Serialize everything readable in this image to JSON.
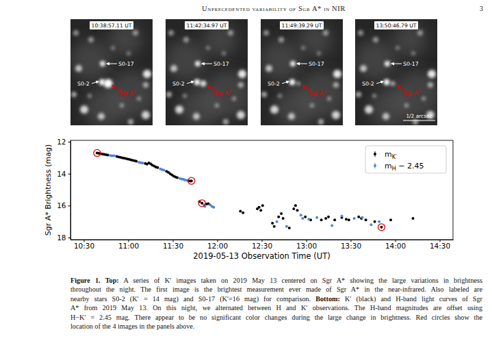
{
  "header": {
    "title": "Unprecedented variability of Sgr A* in NIR",
    "page": "3"
  },
  "panels": {
    "times": [
      "10:38:57.11 UT",
      "11:42:34.97 UT",
      "11:49:39.29 UT",
      "13:50:46.79 UT"
    ],
    "star_labels": [
      "S0-17",
      "S0-2"
    ],
    "target_label": "Sgr A*",
    "scale_label": "1/2 arcsec"
  },
  "chart_data": {
    "type": "scatter",
    "xlabel": "2019-05-13 Observation Time (UT)",
    "ylabel": "Sgr A* Brightness (mag)",
    "xlim": [
      10.35,
      14.65
    ],
    "xticks": [
      {
        "value": 10.5,
        "label": "10:30"
      },
      {
        "value": 11.0,
        "label": "11:00"
      },
      {
        "value": 11.5,
        "label": "11:30"
      },
      {
        "value": 12.0,
        "label": "12:00"
      },
      {
        "value": 12.5,
        "label": "12:30"
      },
      {
        "value": 13.0,
        "label": "13:00"
      },
      {
        "value": 13.5,
        "label": "13:30"
      },
      {
        "value": 14.0,
        "label": "14:00"
      },
      {
        "value": 14.5,
        "label": "14:30"
      }
    ],
    "ylim": [
      18.13,
      11.91
    ],
    "yticks": [
      12,
      14,
      16,
      18
    ],
    "legend": "upper right",
    "marker": "circle",
    "series": [
      {
        "name": "mK′",
        "color": "#000000",
        "x": [
          10.649,
          10.67,
          10.69,
          10.71,
          10.73,
          10.75,
          10.77,
          10.87,
          10.89,
          10.91,
          10.93,
          10.95,
          10.97,
          10.99,
          11.01,
          11.03,
          11.05,
          11.07,
          11.09,
          11.19,
          11.21,
          11.23,
          11.25,
          11.27,
          11.29,
          11.31,
          11.33,
          11.43,
          11.45,
          11.47,
          11.49,
          11.51,
          11.53,
          11.55,
          11.68,
          11.7,
          11.71,
          11.8,
          11.828,
          11.88,
          11.9,
          12.26,
          12.29,
          12.45,
          12.47,
          12.49,
          12.51,
          12.62,
          12.64,
          12.69,
          12.72,
          12.74,
          12.81,
          12.86,
          12.88,
          12.9,
          12.99,
          13.05,
          13.17,
          13.22,
          13.25,
          13.32,
          13.4,
          13.45,
          13.48,
          13.59,
          13.62,
          13.67,
          13.77,
          13.846,
          13.95,
          14.2
        ],
        "values": [
          12.7,
          12.73,
          12.75,
          12.77,
          12.79,
          12.81,
          12.83,
          12.92,
          12.95,
          12.97,
          13.0,
          13.02,
          13.05,
          13.08,
          13.1,
          13.13,
          13.16,
          13.19,
          13.22,
          13.36,
          13.4,
          13.33,
          13.38,
          13.47,
          13.52,
          13.58,
          13.62,
          13.85,
          13.92,
          14.0,
          14.08,
          14.15,
          14.2,
          14.25,
          14.45,
          14.46,
          14.45,
          15.75,
          15.85,
          15.9,
          15.88,
          16.35,
          16.45,
          16.2,
          16.1,
          16.3,
          16.0,
          17.1,
          17.3,
          16.7,
          16.5,
          16.8,
          17.4,
          16.2,
          16.0,
          16.3,
          16.7,
          16.9,
          16.9,
          16.8,
          16.7,
          16.9,
          16.75,
          16.85,
          16.9,
          16.7,
          16.8,
          16.9,
          17.0,
          17.35,
          16.9,
          16.8
        ]
      },
      {
        "name": "mH − 2.45",
        "color": "#5082dc",
        "x": [
          10.8,
          10.82,
          10.84,
          11.12,
          11.14,
          11.16,
          11.36,
          11.38,
          11.4,
          11.58,
          11.6,
          11.62,
          11.64,
          11.66,
          11.85,
          11.86,
          11.92,
          11.94,
          11.96,
          12.67,
          12.78,
          12.94,
          12.96,
          13.03,
          13.12,
          13.29,
          13.4,
          13.54,
          13.63,
          13.73,
          13.82
        ],
        "values": [
          12.86,
          12.88,
          12.87,
          13.28,
          13.31,
          13.33,
          13.7,
          13.74,
          13.78,
          14.3,
          14.33,
          14.36,
          14.4,
          14.42,
          15.95,
          16.05,
          15.95,
          16.05,
          16.1,
          17.0,
          17.3,
          16.6,
          16.8,
          16.85,
          16.75,
          17.25,
          16.65,
          16.8,
          16.75,
          17.2,
          17.0
        ]
      }
    ],
    "highlights": {
      "color": "#e00000",
      "x": [
        10.649,
        11.71,
        11.828,
        13.846
      ],
      "values": [
        12.7,
        14.45,
        15.85,
        17.35
      ]
    }
  },
  "caption": {
    "lines": [
      [
        {
          "text": "Figure 1.",
          "bold": true
        },
        {
          "text": " Top:",
          "bold": true
        },
        {
          "text": " A series of K′ images taken on 2019 May 13 centered on Sgr A* showing the large variations in brightness",
          "bold": false
        }
      ],
      [
        {
          "text": "throughout the night. The first image is the brightest measurement ever made of Sgr A* in the near-infrared. Also labeled are",
          "bold": false
        }
      ],
      [
        {
          "text": "nearby stars S0-2 (K′ = 14 mag) and S0-17 (K′=16 mag) for comparison. ",
          "bold": false
        },
        {
          "text": "Bottom:",
          "bold": true
        },
        {
          "text": " K′ (black) and H-band light curves of Sgr",
          "bold": false
        }
      ],
      [
        {
          "text": "A* from 2019 May 13. On this night, we alternated between H and K′ observations. The H-band magnitudes are offset using",
          "bold": false
        }
      ],
      [
        {
          "text": "H−K′ = 2.45 mag. There appear to be no significant color changes during the large change in brightness. Red circles show the",
          "bold": false
        }
      ],
      [
        {
          "text": "location of the 4 images in the panels above.",
          "bold": false
        }
      ]
    ]
  }
}
